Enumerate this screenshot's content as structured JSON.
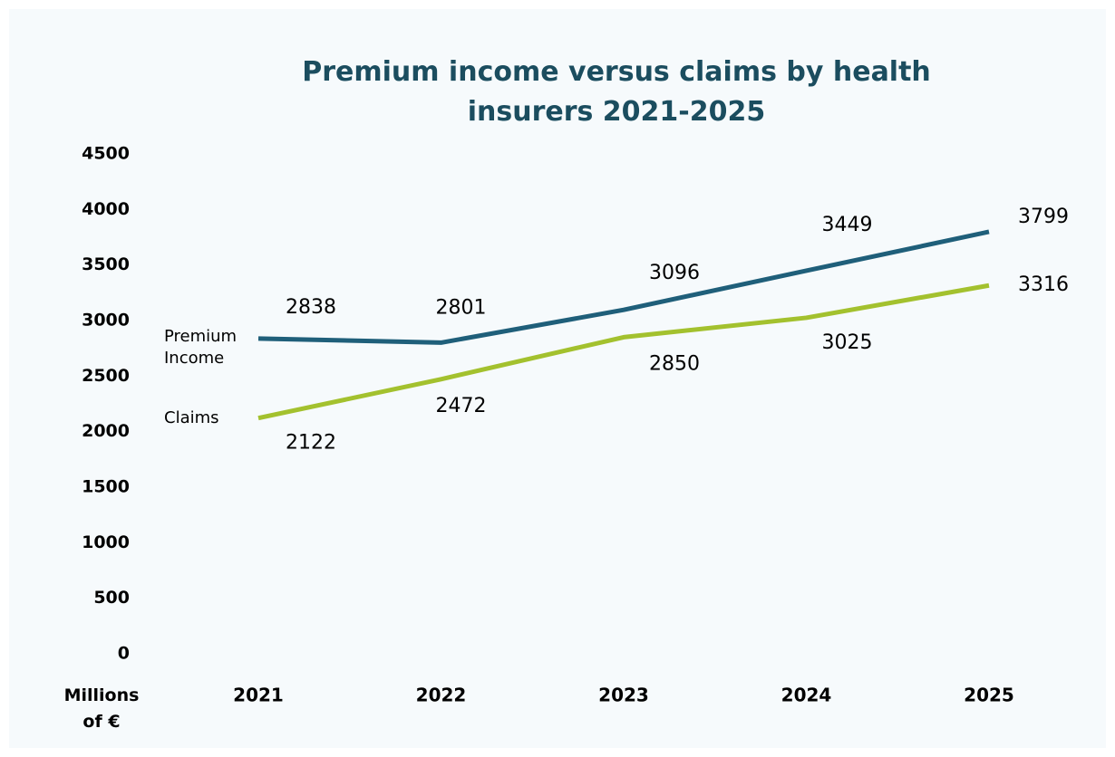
{
  "chart_data": {
    "type": "line",
    "title": "Premium income versus claims by health insurers 2021-2025",
    "y_axis_label": "Millions of €",
    "categories": [
      "2021",
      "2022",
      "2023",
      "2024",
      "2025"
    ],
    "series": [
      {
        "name": "Premium Income",
        "color": "#1f5f7a",
        "values": [
          2838,
          2801,
          3096,
          3449,
          3799
        ]
      },
      {
        "name": "Claims",
        "color": "#a3c12e",
        "values": [
          2122,
          2472,
          2850,
          3025,
          3316
        ]
      }
    ],
    "ylim": [
      0,
      4500
    ],
    "yticks": [
      0,
      500,
      1000,
      1500,
      2000,
      2500,
      3000,
      3500,
      4000,
      4500
    ],
    "grid": false
  }
}
